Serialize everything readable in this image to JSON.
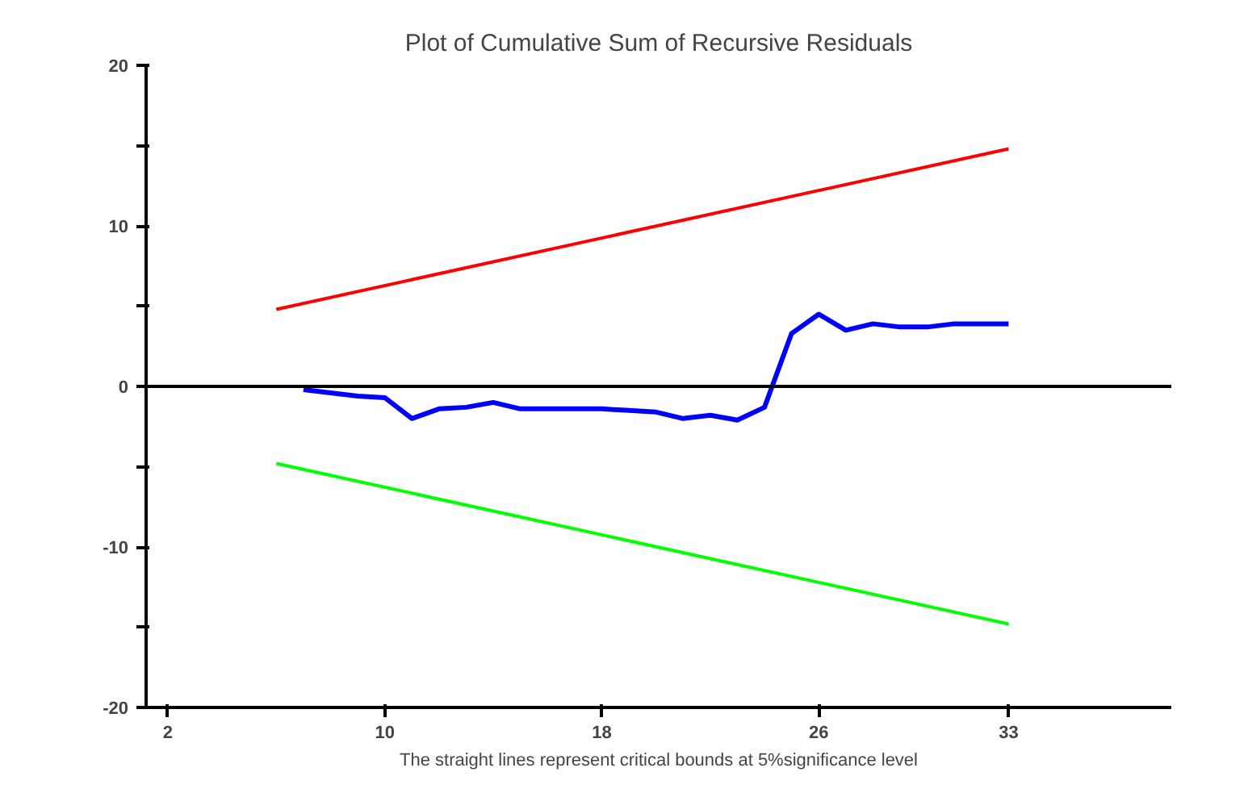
{
  "chart_data": {
    "type": "line",
    "title": "Plot of Cumulative Sum of Recursive Residuals",
    "xlabel": "The straight lines represent critical bounds at 5%significance level",
    "xlim": [
      1.2,
      39
    ],
    "xticks": [
      2,
      10,
      18,
      26,
      33
    ],
    "ylim": [
      -20,
      20
    ],
    "yticks": [
      {
        "value": -20,
        "label": "-20"
      },
      {
        "value": -15,
        "label": null
      },
      {
        "value": -10,
        "label": "-10"
      },
      {
        "value": -5,
        "label": null
      },
      {
        "value": 0,
        "label": "0"
      },
      {
        "value": 5,
        "label": null
      },
      {
        "value": 10,
        "label": "10"
      },
      {
        "value": 15,
        "label": null
      },
      {
        "value": 20,
        "label": "20"
      }
    ],
    "grid": false,
    "marker": "none",
    "line_style": "solid",
    "ref_lines": [
      {
        "axis": "y",
        "value": 0,
        "label": null,
        "color": "#000000"
      }
    ],
    "series": [
      {
        "color": "#0000ff",
        "x": [
          7,
          8,
          9,
          10,
          11,
          12,
          13,
          14,
          15,
          16,
          17,
          18,
          19,
          20,
          21,
          22,
          23,
          24,
          25,
          26,
          27,
          28,
          29,
          30,
          31,
          32,
          33
        ],
        "values": [
          -0.2,
          -0.4,
          -0.6,
          -0.7,
          -2.0,
          -1.4,
          -1.3,
          -1.0,
          -1.4,
          -1.4,
          -1.4,
          -1.4,
          -1.5,
          -1.6,
          -2.0,
          -1.8,
          -2.1,
          -1.3,
          3.3,
          4.5,
          3.5,
          3.9,
          3.7,
          3.7,
          3.9,
          3.9,
          3.9
        ]
      },
      {
        "color": "#ff0000",
        "x": [
          6,
          33
        ],
        "values": [
          4.8,
          14.8
        ]
      },
      {
        "color": "#00ff00",
        "x": [
          6,
          33
        ],
        "values": [
          -4.8,
          -14.8
        ]
      }
    ]
  }
}
